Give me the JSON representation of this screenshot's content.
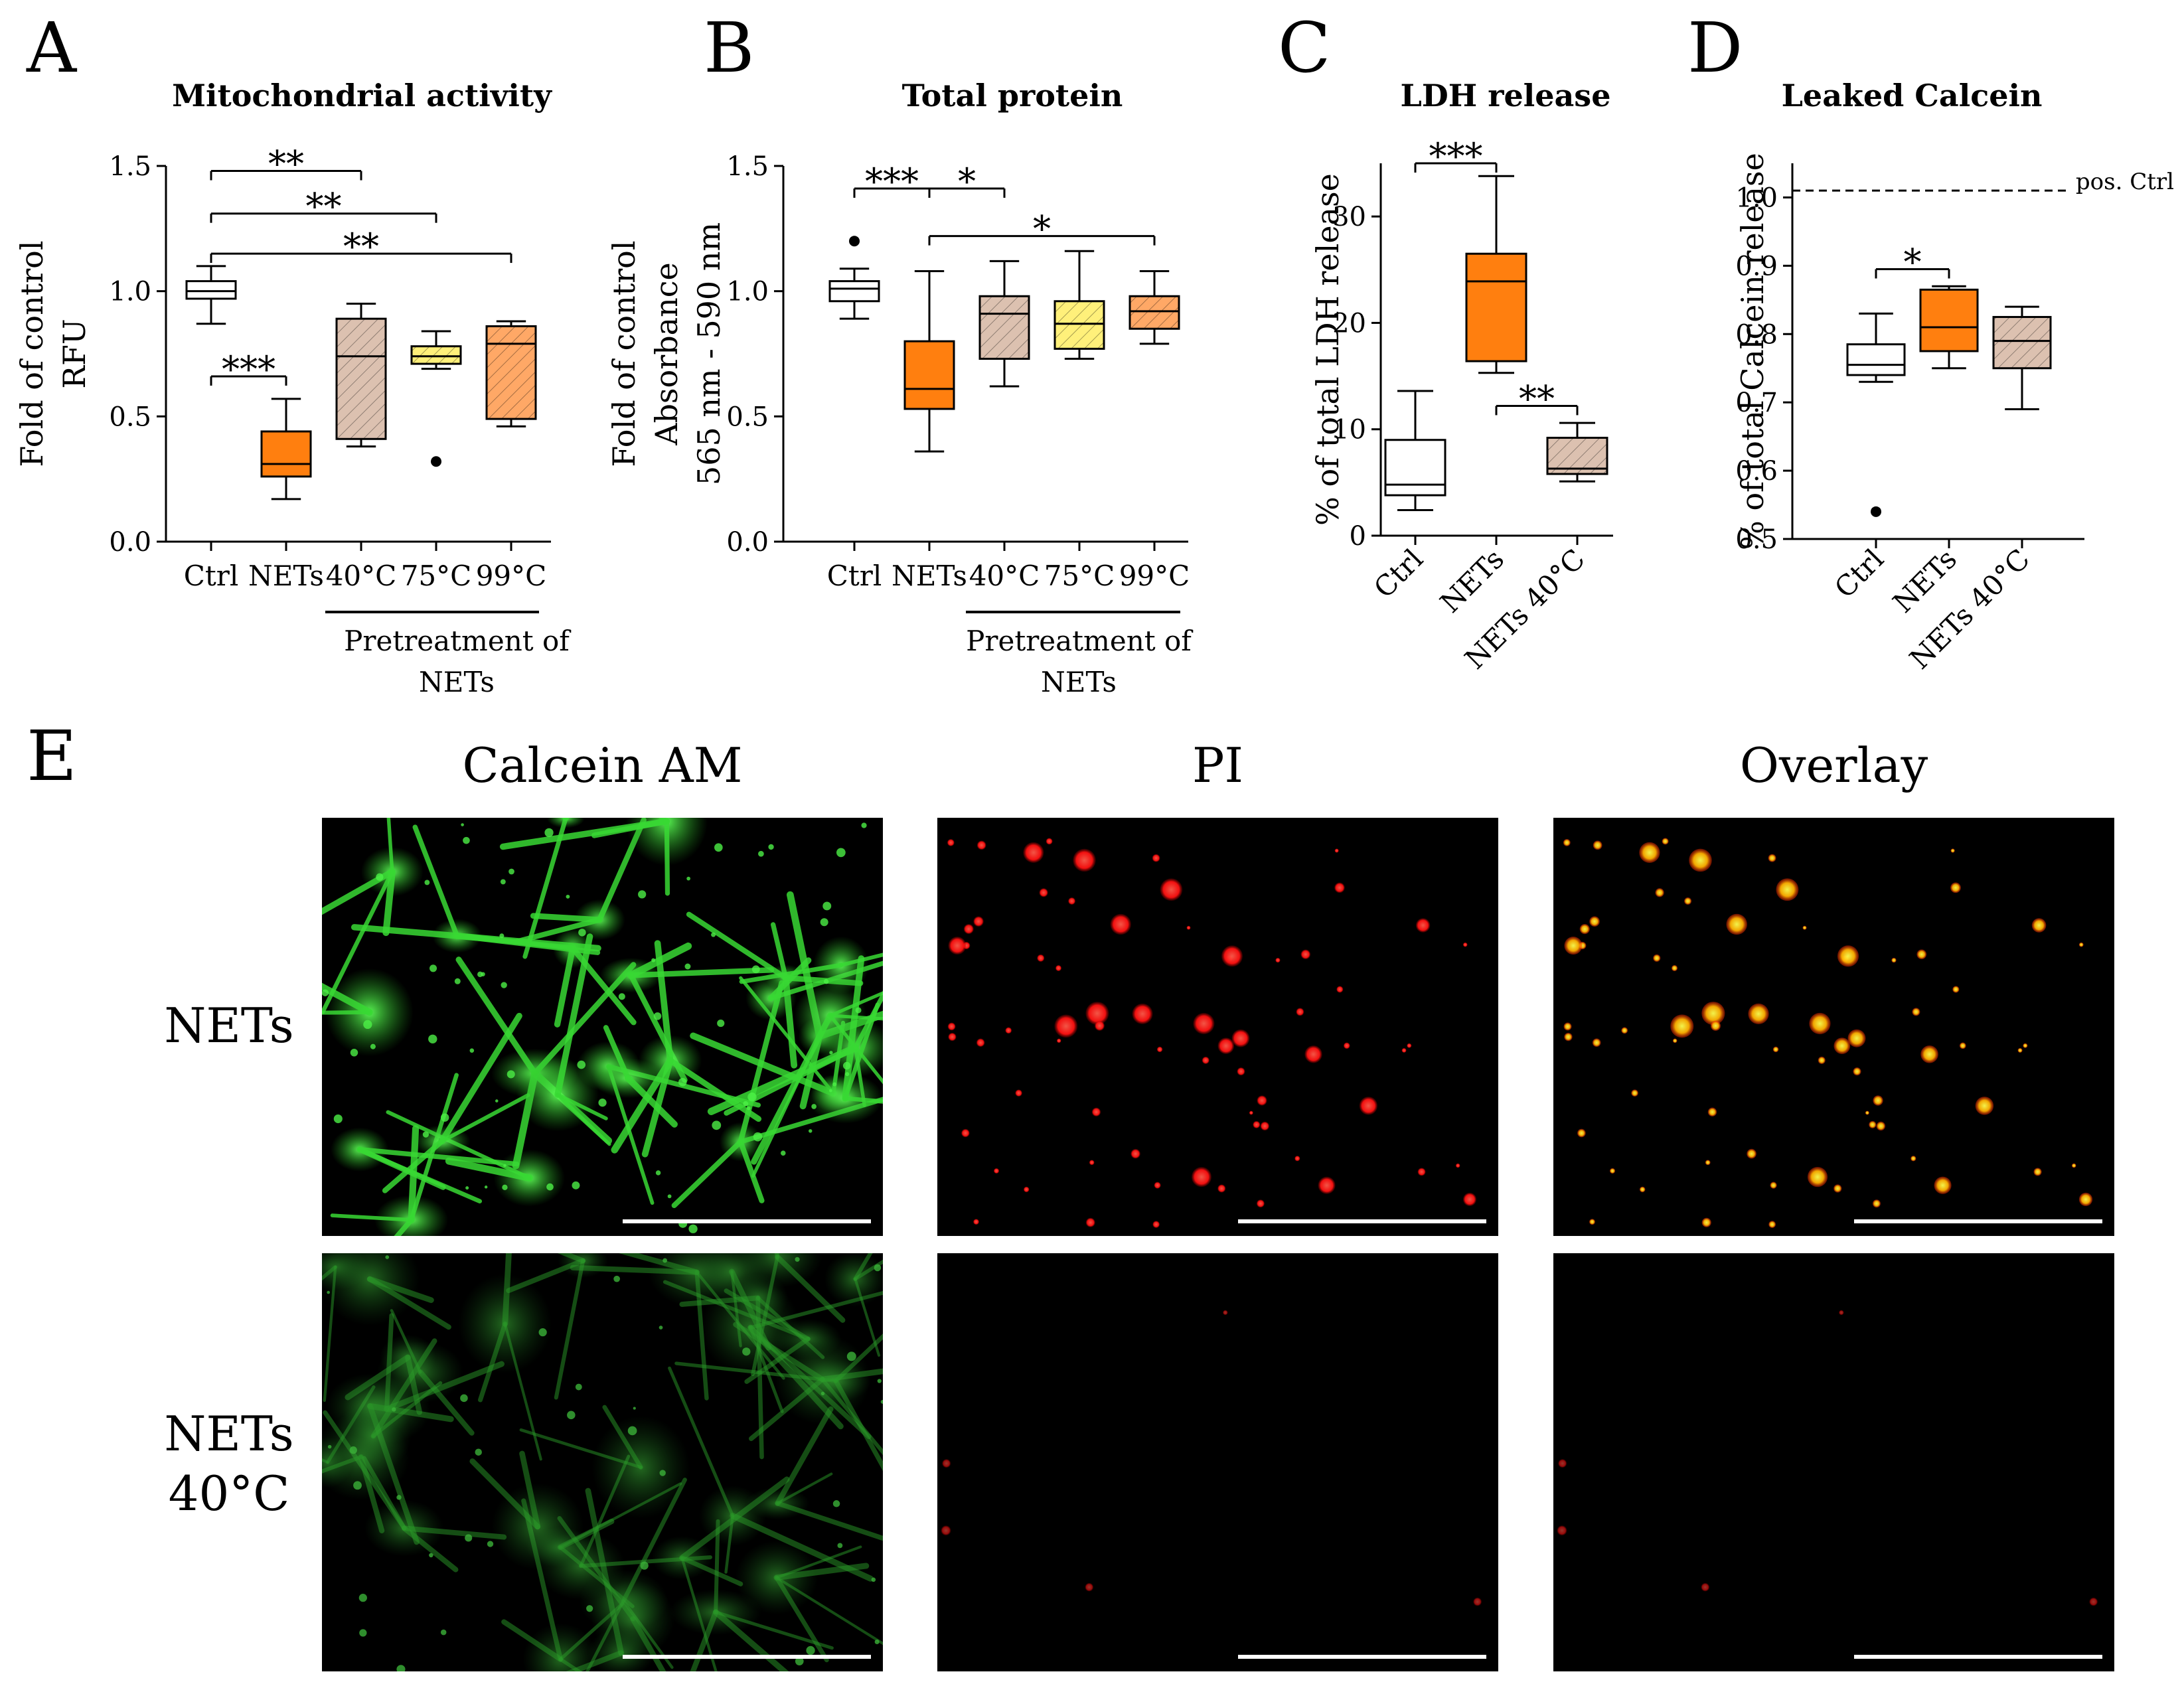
{
  "figure": {
    "colors": {
      "ctrl": "#ffffff",
      "nets": "#ff7f0f",
      "pre40": "#dcc1b0",
      "pre75": "#fff07a",
      "pre99": "#ffa866",
      "stroke": "#000000",
      "green": "#32d42f",
      "red": "#ff1a1a"
    }
  },
  "chart_data": [
    {
      "id": "A",
      "type": "box",
      "title": "Mitochondrial activity",
      "ylabel": [
        "Fold of control",
        "RFU"
      ],
      "categories": [
        "Ctrl",
        "NETs",
        "40°C",
        "75°C",
        "99°C"
      ],
      "group_label": [
        "Pretreatment of",
        "NETs"
      ],
      "yticks": [
        "0.0",
        "0.5",
        "1.0",
        "1.5"
      ],
      "ylim": [
        0,
        1.5
      ],
      "series": [
        {
          "name": "Ctrl",
          "color": "#ffffff",
          "hatch": false,
          "min": 0.87,
          "q1": 0.97,
          "median": 1.0,
          "q3": 1.04,
          "max": 1.1,
          "outliers": []
        },
        {
          "name": "NETs",
          "color": "#ff7f0f",
          "hatch": false,
          "min": 0.17,
          "q1": 0.26,
          "median": 0.31,
          "q3": 0.44,
          "max": 0.57,
          "outliers": []
        },
        {
          "name": "40°C",
          "color": "#dcc1b0",
          "hatch": true,
          "min": 0.38,
          "q1": 0.41,
          "median": 0.74,
          "q3": 0.89,
          "max": 0.95,
          "outliers": []
        },
        {
          "name": "75°C",
          "color": "#fff07a",
          "hatch": true,
          "min": 0.69,
          "q1": 0.71,
          "median": 0.74,
          "q3": 0.78,
          "max": 0.84,
          "outliers": [
            0.32
          ]
        },
        {
          "name": "99°C",
          "color": "#ffa866",
          "hatch": true,
          "min": 0.46,
          "q1": 0.49,
          "median": 0.79,
          "q3": 0.86,
          "max": 0.88,
          "outliers": []
        }
      ],
      "significance": [
        {
          "from": 0,
          "to": 2,
          "y": 1.48,
          "label": "**"
        },
        {
          "from": 0,
          "to": 3,
          "y": 1.31,
          "label": "**"
        },
        {
          "from": 0,
          "to": 4,
          "y": 1.15,
          "label": "**"
        },
        {
          "from": 0,
          "to": 1,
          "y": 0.66,
          "label": "***"
        }
      ]
    },
    {
      "id": "B",
      "type": "box",
      "title": "Total protein",
      "ylabel": [
        "Fold of control",
        "Absorbance",
        "565 nm - 590 nm"
      ],
      "categories": [
        "Ctrl",
        "NETs",
        "40°C",
        "75°C",
        "99°C"
      ],
      "group_label": [
        "Pretreatment of",
        "NETs"
      ],
      "yticks": [
        "0.0",
        "0.5",
        "1.0",
        "1.5"
      ],
      "ylim": [
        0,
        1.5
      ],
      "series": [
        {
          "name": "Ctrl",
          "color": "#ffffff",
          "hatch": false,
          "min": 0.89,
          "q1": 0.96,
          "median": 1.01,
          "q3": 1.04,
          "max": 1.09,
          "outliers": [
            1.2
          ]
        },
        {
          "name": "NETs",
          "color": "#ff7f0f",
          "hatch": false,
          "min": 0.36,
          "q1": 0.53,
          "median": 0.61,
          "q3": 0.8,
          "max": 1.08,
          "outliers": []
        },
        {
          "name": "40°C",
          "color": "#dcc1b0",
          "hatch": true,
          "min": 0.62,
          "q1": 0.73,
          "median": 0.91,
          "q3": 0.98,
          "max": 1.12,
          "outliers": []
        },
        {
          "name": "75°C",
          "color": "#fff07a",
          "hatch": true,
          "min": 0.73,
          "q1": 0.77,
          "median": 0.87,
          "q3": 0.96,
          "max": 1.16,
          "outliers": []
        },
        {
          "name": "99°C",
          "color": "#ffa866",
          "hatch": true,
          "min": 0.79,
          "q1": 0.85,
          "median": 0.92,
          "q3": 0.98,
          "max": 1.08,
          "outliers": []
        }
      ],
      "significance": [
        {
          "from": 0,
          "to": 1,
          "y": 1.41,
          "label": "***"
        },
        {
          "from": 1,
          "to": 2,
          "y": 1.41,
          "label": "*",
          "shared_left": true
        },
        {
          "from": 1,
          "to": 4,
          "y": 1.22,
          "label": "*"
        }
      ]
    },
    {
      "id": "C",
      "type": "box",
      "title": "LDH release",
      "ylabel": [
        "% of total  LDH release"
      ],
      "categories": [
        "Ctrl",
        "NETs",
        "NETs 40°C"
      ],
      "yticks": [
        "0",
        "10",
        "20",
        "30"
      ],
      "ylim": [
        0,
        35
      ],
      "series": [
        {
          "name": "Ctrl",
          "color": "#ffffff",
          "hatch": false,
          "min": 2.4,
          "q1": 3.8,
          "median": 4.8,
          "q3": 9.0,
          "max": 13.6,
          "outliers": []
        },
        {
          "name": "NETs",
          "color": "#ff7f0f",
          "hatch": false,
          "min": 15.3,
          "q1": 16.4,
          "median": 23.9,
          "q3": 26.5,
          "max": 33.8,
          "outliers": []
        },
        {
          "name": "NETs 40°C",
          "color": "#dcc1b0",
          "hatch": true,
          "min": 5.1,
          "q1": 5.8,
          "median": 6.3,
          "q3": 9.2,
          "max": 10.6,
          "outliers": []
        }
      ],
      "significance": [
        {
          "from": 0,
          "to": 1,
          "y": 35.0,
          "label": "***"
        },
        {
          "from": 1,
          "to": 2,
          "y": 12.2,
          "label": "**"
        }
      ]
    },
    {
      "id": "D",
      "type": "box",
      "title": "Leaked Calcein",
      "ylabel": [
        "% of total Calcein release"
      ],
      "categories": [
        "Ctrl",
        "NETs",
        "NETs 40°C"
      ],
      "yticks": [
        "0.5",
        "0.6",
        "0.7",
        "0.8",
        "0.9",
        "1.0"
      ],
      "ylim": [
        0.5,
        1.05
      ],
      "reference_line": {
        "y": 1.01,
        "label": "pos. Ctrl"
      },
      "series": [
        {
          "name": "Ctrl",
          "color": "#ffffff",
          "hatch": false,
          "min": 0.73,
          "q1": 0.74,
          "median": 0.755,
          "q3": 0.785,
          "max": 0.83,
          "outliers": [
            0.54
          ]
        },
        {
          "name": "NETs",
          "color": "#ff7f0f",
          "hatch": false,
          "min": 0.75,
          "q1": 0.775,
          "median": 0.81,
          "q3": 0.865,
          "max": 0.87,
          "outliers": []
        },
        {
          "name": "NETs 40°C",
          "color": "#dcc1b0",
          "hatch": true,
          "min": 0.69,
          "q1": 0.75,
          "median": 0.79,
          "q3": 0.825,
          "max": 0.84,
          "outliers": []
        }
      ],
      "significance": [
        {
          "from": 0,
          "to": 1,
          "y": 0.895,
          "label": "*"
        }
      ]
    }
  ],
  "panel_e": {
    "letter": "E",
    "columns": [
      "Calcein AM",
      "PI",
      "Overlay"
    ],
    "rows": [
      [
        "NETs"
      ],
      [
        "NETs",
        "40°C"
      ]
    ]
  }
}
